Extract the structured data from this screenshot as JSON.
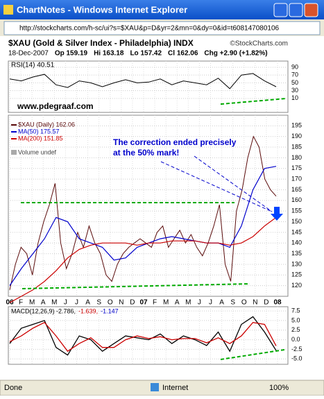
{
  "window": {
    "title": "ChartNotes - Windows Internet Explorer",
    "url": "http://stockcharts.com/h-sc/ui?s=$XAU&p=D&yr=2&mn=0&dy=0&id=t608147080106"
  },
  "status": {
    "left": "Done",
    "zone": "Internet",
    "zoom": "100%"
  },
  "chart_data": {
    "type": "line",
    "title": "$XAU (Gold & Silver Index - Philadelphia) INDX",
    "credit": "©StockCharts.com",
    "quote": [
      "18-Dec-2007",
      "Op 159.19",
      "Hi 163.18",
      "Lo 157.42",
      "Cl 162.06",
      "Chg +2.90 (+1.82%)"
    ],
    "watermark": "www.pdegraaf.com",
    "annotation": [
      "The correction ended precisely",
      "at the 50% mark!"
    ],
    "categories": [
      "06",
      "F",
      "M",
      "A",
      "M",
      "J",
      "J",
      "A",
      "S",
      "O",
      "N",
      "D",
      "07",
      "F",
      "M",
      "A",
      "M",
      "J",
      "J",
      "A",
      "S",
      "O",
      "N",
      "D",
      "08"
    ],
    "rsi": {
      "name": "RSI(14) 40.51",
      "color": "#000000",
      "ylim": [
        -26,
        106
      ],
      "yticks": [
        90,
        70,
        50,
        30,
        10
      ],
      "values": [
        60,
        55,
        65,
        72,
        45,
        38,
        55,
        50,
        40,
        50,
        58,
        50,
        52,
        60,
        45,
        55,
        50,
        45,
        62,
        35,
        70,
        74,
        55,
        40
      ]
    },
    "price": {
      "ylim": [
        115,
        200
      ],
      "yticks": [
        195,
        190,
        185,
        180,
        175,
        170,
        165,
        160,
        155,
        150,
        145,
        140,
        135,
        130,
        125,
        120
      ],
      "volume": "Volume undef",
      "series": [
        {
          "name": "$XAU (Daily) 162.06",
          "color": "#5a0a0a",
          "values": [
            118,
            130,
            138,
            135,
            125,
            140,
            150,
            158,
            168,
            140,
            128,
            135,
            145,
            138,
            148,
            140,
            135,
            125,
            122,
            130,
            135,
            138,
            140,
            142,
            140,
            138,
            145,
            148,
            138,
            142,
            146,
            140,
            144,
            138,
            134,
            140,
            148,
            158,
            130,
            122,
            155,
            165,
            180,
            190,
            185,
            170,
            165,
            162
          ]
        },
        {
          "name": "MA(50) 175.57",
          "color": "#0000cc",
          "values": [
            120,
            128,
            135,
            142,
            152,
            150,
            142,
            140,
            138,
            132,
            133,
            138,
            140,
            142,
            143,
            142,
            141,
            140,
            140,
            138,
            148,
            165,
            175,
            176
          ]
        },
        {
          "name": "MA(200) 151.85",
          "color": "#cc0000",
          "values": [
            112,
            115,
            118,
            122,
            127,
            133,
            137,
            139,
            140,
            140,
            140,
            139,
            140,
            140,
            141,
            141,
            141,
            140,
            140,
            139,
            140,
            143,
            148,
            152
          ]
        }
      ]
    },
    "macd": {
      "labels": [
        "MACD(12,26,9) -2.786,",
        "-1.639,",
        "-1.147"
      ],
      "ylim": [
        -6.4,
        8.6
      ],
      "yticks": [
        7.5,
        {
          "value": 5,
          "label": "5.0"
        },
        2.5,
        {
          "value": 0,
          "label": "0.0"
        },
        -2.5,
        {
          "value": -5,
          "label": "-5.0"
        }
      ],
      "series": [
        {
          "color": "#000000",
          "values": [
            -1,
            3,
            4,
            5,
            -2,
            -4,
            1,
            0,
            -3,
            -1,
            1,
            0.5,
            0,
            1.5,
            -1,
            1,
            0,
            -1.5,
            2,
            -3,
            4,
            6,
            2,
            -2.8
          ]
        },
        {
          "color": "#cc0000",
          "values": [
            -0.5,
            1,
            3,
            4.5,
            1,
            -3,
            -1,
            0.5,
            -2,
            -2,
            0,
            1,
            0.3,
            0.8,
            0,
            0.3,
            0.3,
            -0.8,
            0.5,
            -1,
            1,
            4.5,
            4,
            -1.6
          ]
        }
      ]
    }
  }
}
